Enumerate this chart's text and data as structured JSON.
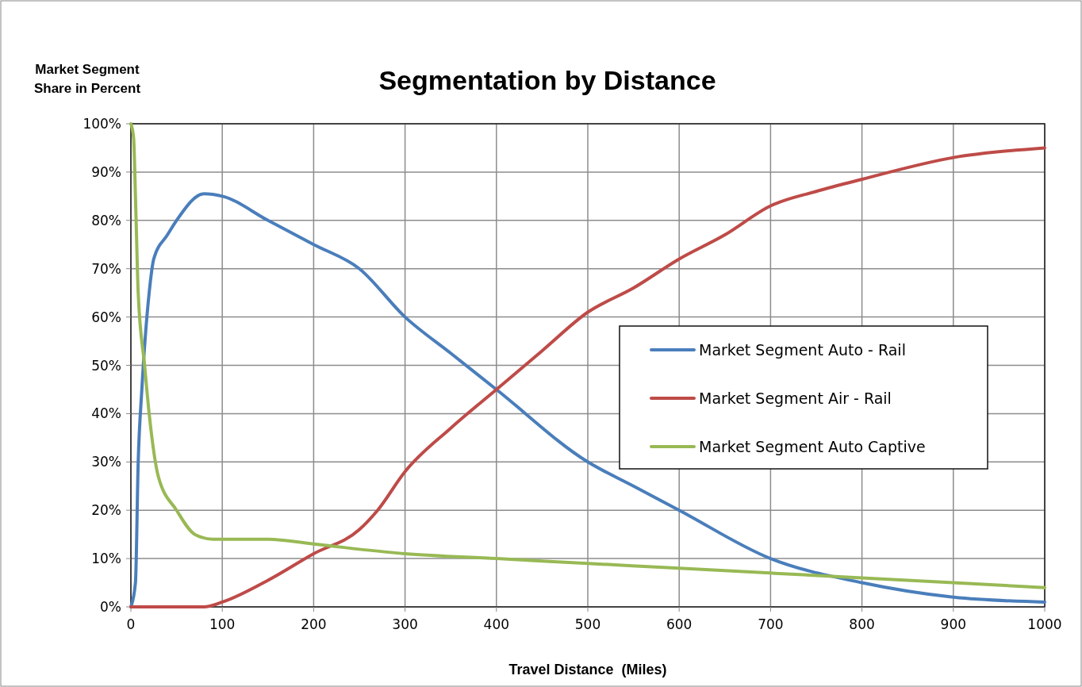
{
  "chart_data": {
    "type": "line",
    "title": "Segmentation by Distance",
    "xlabel": "Travel Distance  (Miles)",
    "ylabel": "Market Segment Share in Percent",
    "xlim": [
      0,
      1000
    ],
    "xticks": [
      0,
      100,
      200,
      300,
      400,
      500,
      600,
      700,
      800,
      900,
      1000
    ],
    "ylim": [
      0,
      100
    ],
    "yticks": [
      {
        "value": 0,
        "label": "0%"
      },
      {
        "value": 10,
        "label": "10%"
      },
      {
        "value": 20,
        "label": "20%"
      },
      {
        "value": 30,
        "label": "30%"
      },
      {
        "value": 40,
        "label": "40%"
      },
      {
        "value": 50,
        "label": "50%"
      },
      {
        "value": 60,
        "label": "60%"
      },
      {
        "value": 70,
        "label": "70%"
      },
      {
        "value": 80,
        "label": "80%"
      },
      {
        "value": 90,
        "label": "90%"
      },
      {
        "value": 100,
        "label": "100%"
      }
    ],
    "grid": true,
    "legend": "right",
    "marker": "none",
    "line_style": "solid",
    "series": [
      {
        "name": "Market Segment Auto - Rail",
        "color": "#4a7ebb",
        "x": [
          0,
          5,
          8,
          12,
          20,
          25,
          40,
          50,
          80,
          100,
          150,
          200,
          250,
          300,
          350,
          400,
          500,
          550,
          600,
          700,
          800,
          900,
          1000
        ],
        "values": [
          0,
          5,
          30,
          45,
          65,
          72,
          77,
          80,
          85.5,
          85,
          80,
          75,
          70,
          60,
          52.5,
          45,
          30,
          25,
          20,
          10,
          5,
          2,
          1
        ]
      },
      {
        "name": "Market Segment Air - Rail",
        "color": "#be4b48",
        "x": [
          0,
          80,
          100,
          150,
          200,
          250,
          270,
          300,
          350,
          400,
          450,
          500,
          550,
          600,
          650,
          700,
          750,
          800,
          900,
          1000
        ],
        "values": [
          0,
          0,
          1,
          5.5,
          11,
          16,
          20,
          28,
          37,
          45,
          53,
          61,
          66,
          72,
          77,
          83,
          86,
          88.5,
          93,
          95
        ]
      },
      {
        "name": "Market Segment Auto Captive",
        "color": "#98b954",
        "x": [
          0,
          3,
          5,
          8,
          15,
          20,
          30,
          50,
          70,
          90,
          150,
          200,
          300,
          400,
          500,
          600,
          700,
          800,
          900,
          1000
        ],
        "values": [
          100,
          97,
          85,
          65,
          50,
          40,
          27,
          20,
          15,
          14,
          14,
          13,
          11,
          10,
          9,
          8,
          7,
          6,
          5,
          4
        ]
      }
    ]
  }
}
